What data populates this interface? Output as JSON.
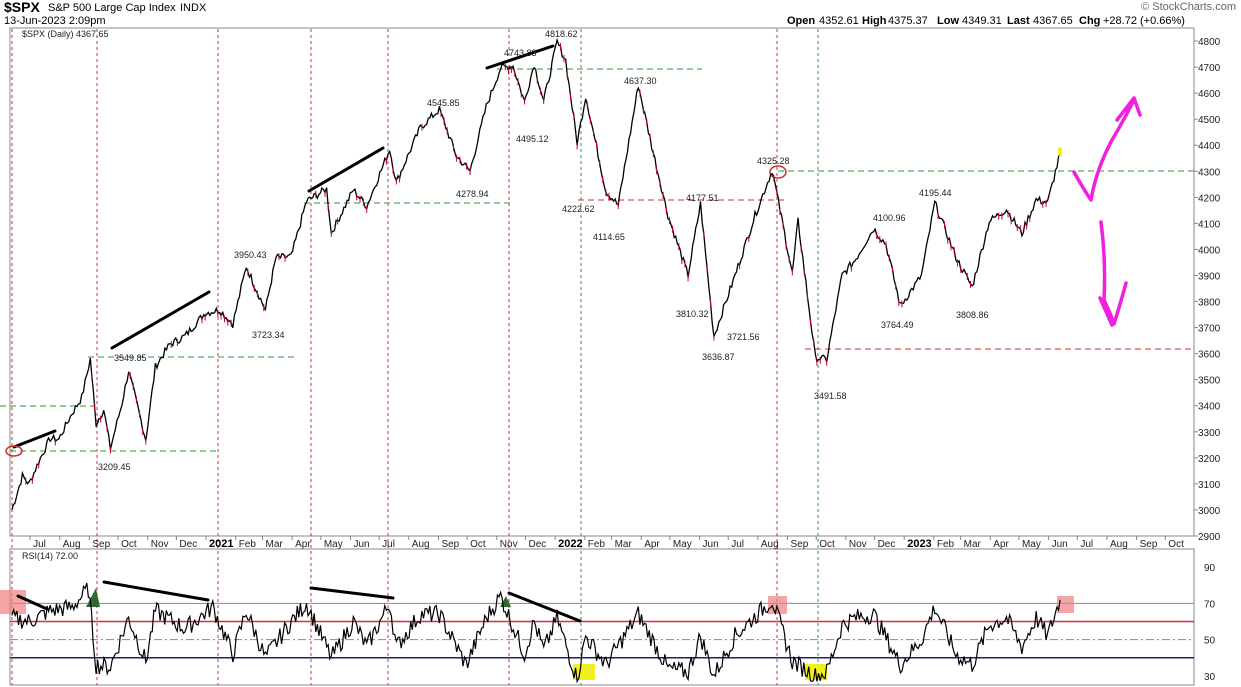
{
  "header": {
    "symbol": "$SPX",
    "name": "S&P 500 Large Cap Index",
    "exchange": "INDX",
    "date": "13-Jun-2023 2:09pm",
    "brand": "© StockCharts.com",
    "open_label": "Open",
    "open": "4352.61",
    "high_label": "High",
    "high": "4375.37",
    "low_label": "Low",
    "low": "4349.31",
    "last_label": "Last",
    "last": "4367.65",
    "chg_label": "Chg",
    "chg": "+28.72 (+0.66%)"
  },
  "chart_data": [
    {
      "type": "line",
      "legend": "$SPX (Daily) 4367.65",
      "y_range": [
        2900,
        4850
      ],
      "y_ticks": [
        2900,
        3000,
        3100,
        3200,
        3300,
        3400,
        3500,
        3600,
        3700,
        3800,
        3900,
        4000,
        4100,
        4200,
        4300,
        4400,
        4500,
        4600,
        4700,
        4800
      ],
      "x_range": [
        "2020-06-10",
        "2023-10-31"
      ],
      "x_ticks": [
        {
          "label": "Jul",
          "date": "2020-07-01"
        },
        {
          "label": "Aug",
          "date": "2020-08-01"
        },
        {
          "label": "Sep",
          "date": "2020-09-01"
        },
        {
          "label": "Oct",
          "date": "2020-10-01"
        },
        {
          "label": "Nov",
          "date": "2020-11-01"
        },
        {
          "label": "Dec",
          "date": "2020-12-01"
        },
        {
          "label": "2021",
          "date": "2021-01-01",
          "bold": true
        },
        {
          "label": "Feb",
          "date": "2021-02-01"
        },
        {
          "label": "Mar",
          "date": "2021-03-01"
        },
        {
          "label": "Apr",
          "date": "2021-04-01"
        },
        {
          "label": "May",
          "date": "2021-05-01"
        },
        {
          "label": "Jun",
          "date": "2021-06-01"
        },
        {
          "label": "Jul",
          "date": "2021-07-01"
        },
        {
          "label": "Aug",
          "date": "2021-08-01"
        },
        {
          "label": "Sep",
          "date": "2021-09-01"
        },
        {
          "label": "Oct",
          "date": "2021-10-01"
        },
        {
          "label": "Nov",
          "date": "2021-11-01"
        },
        {
          "label": "Dec",
          "date": "2021-12-01"
        },
        {
          "label": "2022",
          "date": "2022-01-01",
          "bold": true
        },
        {
          "label": "Feb",
          "date": "2022-02-01"
        },
        {
          "label": "Mar",
          "date": "2022-03-01"
        },
        {
          "label": "Apr",
          "date": "2022-04-01"
        },
        {
          "label": "May",
          "date": "2022-05-01"
        },
        {
          "label": "Jun",
          "date": "2022-06-01"
        },
        {
          "label": "Jul",
          "date": "2022-07-01"
        },
        {
          "label": "Aug",
          "date": "2022-08-01"
        },
        {
          "label": "Sep",
          "date": "2022-09-01"
        },
        {
          "label": "Oct",
          "date": "2022-10-01"
        },
        {
          "label": "Nov",
          "date": "2022-11-01"
        },
        {
          "label": "Dec",
          "date": "2022-12-01"
        },
        {
          "label": "2023",
          "date": "2023-01-01",
          "bold": true
        },
        {
          "label": "Feb",
          "date": "2023-02-01"
        },
        {
          "label": "Mar",
          "date": "2023-03-01"
        },
        {
          "label": "Apr",
          "date": "2023-04-01"
        },
        {
          "label": "May",
          "date": "2023-05-01"
        },
        {
          "label": "Jun",
          "date": "2023-06-01"
        },
        {
          "label": "Jul",
          "date": "2023-07-01"
        },
        {
          "label": "Aug",
          "date": "2023-08-01"
        },
        {
          "label": "Sep",
          "date": "2023-09-01"
        },
        {
          "label": "Oct",
          "date": "2023-10-01"
        }
      ],
      "series": [
        {
          "points": [
            [
              "2020-06-12",
              3000
            ],
            [
              "2020-06-23",
              3130
            ],
            [
              "2020-06-30",
              3100
            ],
            [
              "2020-07-10",
              3185
            ],
            [
              "2020-07-22",
              3275
            ],
            [
              "2020-07-31",
              3271
            ],
            [
              "2020-08-14",
              3372
            ],
            [
              "2020-08-24",
              3431
            ],
            [
              "2020-09-02",
              3580
            ],
            [
              "2020-09-08",
              3331
            ],
            [
              "2020-09-16",
              3385
            ],
            [
              "2020-09-23",
              3237
            ],
            [
              "2020-10-05",
              3408
            ],
            [
              "2020-10-12",
              3534
            ],
            [
              "2020-10-30",
              3270
            ],
            [
              "2020-11-09",
              3550
            ],
            [
              "2020-11-24",
              3635
            ],
            [
              "2020-12-10",
              3668
            ],
            [
              "2020-12-31",
              3756
            ],
            [
              "2021-01-15",
              3768
            ],
            [
              "2021-01-29",
              3714
            ],
            [
              "2021-02-12",
              3934
            ],
            [
              "2021-03-04",
              3768
            ],
            [
              "2021-03-15",
              3968
            ],
            [
              "2021-03-31",
              3972
            ],
            [
              "2021-04-16",
              4185
            ],
            [
              "2021-05-07",
              4232
            ],
            [
              "2021-05-12",
              4063
            ],
            [
              "2021-06-04",
              4229
            ],
            [
              "2021-06-18",
              4166
            ],
            [
              "2021-07-12",
              4384
            ],
            [
              "2021-07-19",
              4258
            ],
            [
              "2021-08-13",
              4468
            ],
            [
              "2021-09-02",
              4537
            ],
            [
              "2021-09-20",
              4357
            ],
            [
              "2021-10-04",
              4300
            ],
            [
              "2021-10-21",
              4549
            ],
            [
              "2021-11-05",
              4697
            ],
            [
              "2021-11-18",
              4704
            ],
            [
              "2021-11-30",
              4567
            ],
            [
              "2021-12-10",
              4712
            ],
            [
              "2021-12-20",
              4568
            ],
            [
              "2022-01-03",
              4796
            ],
            [
              "2022-01-12",
              4726
            ],
            [
              "2022-01-24",
              4410
            ],
            [
              "2022-02-02",
              4589
            ],
            [
              "2022-02-23",
              4225
            ],
            [
              "2022-03-08",
              4170
            ],
            [
              "2022-03-29",
              4631
            ],
            [
              "2022-04-12",
              4397
            ],
            [
              "2022-04-29",
              4131
            ],
            [
              "2022-05-20",
              3901
            ],
            [
              "2022-06-02",
              4176
            ],
            [
              "2022-06-16",
              3667
            ],
            [
              "2022-07-08",
              3899
            ],
            [
              "2022-07-29",
              4130
            ],
            [
              "2022-08-16",
              4305
            ],
            [
              "2022-09-06",
              3908
            ],
            [
              "2022-09-12",
              4110
            ],
            [
              "2022-09-30",
              3586
            ],
            [
              "2022-10-12",
              3577
            ],
            [
              "2022-10-28",
              3901
            ],
            [
              "2022-11-10",
              3956
            ],
            [
              "2022-11-30",
              4080
            ],
            [
              "2022-12-13",
              4019
            ],
            [
              "2022-12-28",
              3783
            ],
            [
              "2023-01-19",
              3899
            ],
            [
              "2023-02-02",
              4179
            ],
            [
              "2023-02-24",
              3970
            ],
            [
              "2023-03-13",
              3855
            ],
            [
              "2023-03-31",
              4109
            ],
            [
              "2023-04-18",
              4154
            ],
            [
              "2023-05-04",
              4061
            ],
            [
              "2023-05-19",
              4191
            ],
            [
              "2023-05-31",
              4180
            ],
            [
              "2023-06-13",
              4368
            ]
          ]
        }
      ],
      "annotations": [
        "3209.45",
        "3549.85",
        "3950.43",
        "3723.34",
        "4545.85",
        "4278.94",
        "4743.83",
        "4818.62",
        "4495.12",
        "4222.62",
        "4637.30",
        "4114.65",
        "4177.51",
        "3810.32",
        "3636.87",
        "3721.56",
        "4325.28",
        "4100.96",
        "3491.58",
        "3764.49",
        "4195.44",
        "3808.86"
      ]
    },
    {
      "type": "line",
      "legend": "RSI(14) 72.00",
      "y_range": [
        25,
        100
      ],
      "y_ticks": [
        30,
        50,
        70,
        90
      ],
      "series": [
        {
          "points": [
            [
              "2020-06-12",
              62
            ],
            [
              "2020-07-01",
              60
            ],
            [
              "2020-07-22",
              66
            ],
            [
              "2020-08-14",
              68
            ],
            [
              "2020-08-31",
              78
            ],
            [
              "2020-09-08",
              36
            ],
            [
              "2020-09-23",
              35
            ],
            [
              "2020-10-12",
              62
            ],
            [
              "2020-10-30",
              38
            ],
            [
              "2020-11-09",
              66
            ],
            [
              "2020-12-10",
              56
            ],
            [
              "2021-01-08",
              68
            ],
            [
              "2021-01-29",
              42
            ],
            [
              "2021-02-12",
              66
            ],
            [
              "2021-03-04",
              40
            ],
            [
              "2021-03-31",
              60
            ],
            [
              "2021-04-16",
              70
            ],
            [
              "2021-05-12",
              40
            ],
            [
              "2021-06-04",
              60
            ],
            [
              "2021-06-18",
              46
            ],
            [
              "2021-07-12",
              70
            ],
            [
              "2021-07-19",
              46
            ],
            [
              "2021-08-13",
              64
            ],
            [
              "2021-09-02",
              64
            ],
            [
              "2021-09-30",
              36
            ],
            [
              "2021-10-21",
              62
            ],
            [
              "2021-11-05",
              74
            ],
            [
              "2021-11-30",
              42
            ],
            [
              "2021-12-10",
              60
            ],
            [
              "2021-12-20",
              44
            ],
            [
              "2022-01-03",
              62
            ],
            [
              "2022-01-24",
              28
            ],
            [
              "2022-02-02",
              52
            ],
            [
              "2022-02-23",
              36
            ],
            [
              "2022-03-29",
              64
            ],
            [
              "2022-04-29",
              34
            ],
            [
              "2022-05-20",
              32
            ],
            [
              "2022-06-02",
              52
            ],
            [
              "2022-06-16",
              30
            ],
            [
              "2022-07-08",
              52
            ],
            [
              "2022-08-16",
              72
            ],
            [
              "2022-09-06",
              38
            ],
            [
              "2022-09-30",
              30
            ],
            [
              "2022-10-12",
              32
            ],
            [
              "2022-10-28",
              58
            ],
            [
              "2022-11-10",
              62
            ],
            [
              "2022-11-30",
              64
            ],
            [
              "2022-12-28",
              36
            ],
            [
              "2023-01-19",
              50
            ],
            [
              "2023-02-02",
              68
            ],
            [
              "2023-02-24",
              42
            ],
            [
              "2023-03-13",
              36
            ],
            [
              "2023-03-31",
              58
            ],
            [
              "2023-04-18",
              62
            ],
            [
              "2023-05-04",
              46
            ],
            [
              "2023-05-19",
              62
            ],
            [
              "2023-05-31",
              52
            ],
            [
              "2023-06-13",
              72
            ]
          ]
        }
      ]
    }
  ],
  "colors": {
    "price": "#000000",
    "down": "#c00030",
    "rsi": "#000000",
    "green_dash": "#2e9a2e",
    "red_dash": "#d03030",
    "magenta": "#f020e0",
    "yellow": "#f0f020",
    "highlight_red": "#f08080",
    "rsi_70": "#d03040",
    "rsi_30": "#202060",
    "rsi_50": "#888888"
  }
}
